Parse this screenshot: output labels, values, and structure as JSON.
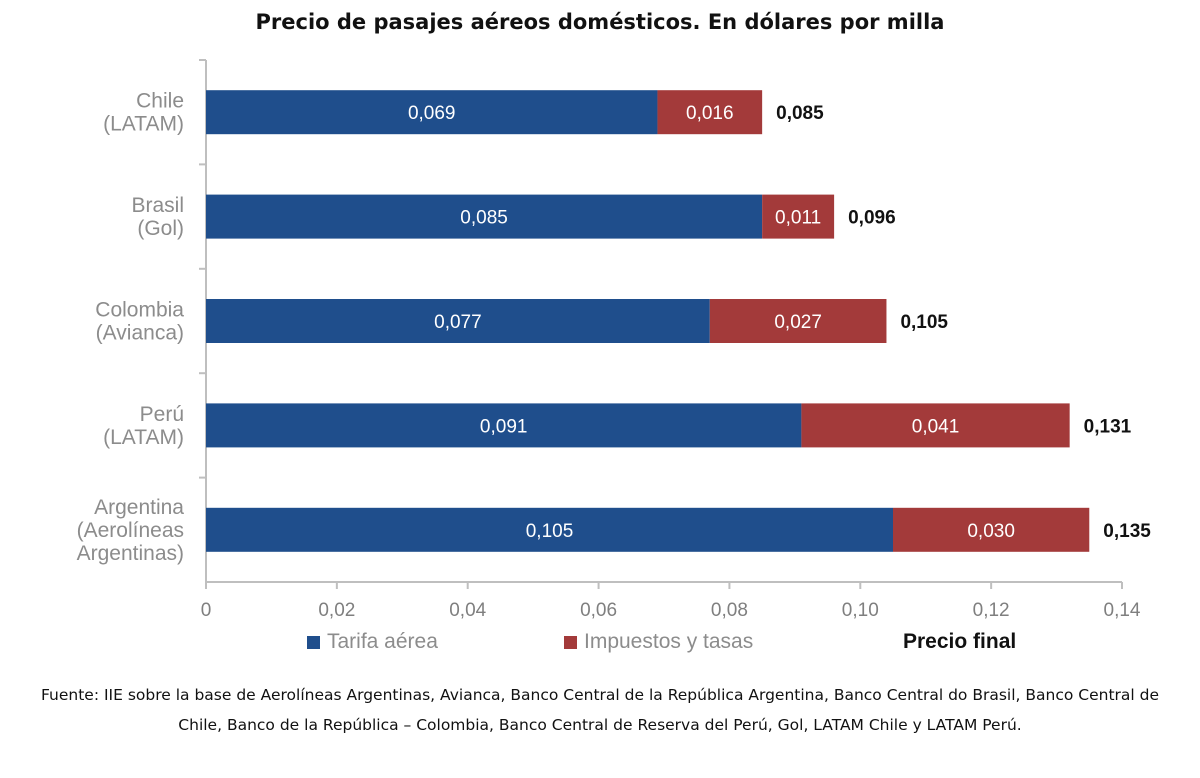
{
  "colors": {
    "tarifa": "#1f4e8c",
    "impuestos": "#a33a3a",
    "axis": "#bfbfbf",
    "category_text": "#8c8c8c",
    "legend_text": "#8c8c8c"
  },
  "chart_data": {
    "type": "bar",
    "orientation": "horizontal",
    "stacked": true,
    "title": "Precio de pasajes aéreos domésticos. En dólares por milla",
    "categories": [
      [
        "Chile",
        "(LATAM)"
      ],
      [
        "Brasil",
        "(Gol)"
      ],
      [
        "Colombia",
        "(Avianca)"
      ],
      [
        "Perú",
        "(LATAM)"
      ],
      [
        "Argentina",
        "(Aerolíneas",
        "Argentinas)"
      ]
    ],
    "series": [
      {
        "name": "Tarifa aérea",
        "values": [
          0.069,
          0.085,
          0.077,
          0.091,
          0.105
        ],
        "labels": [
          "0,069",
          "0,085",
          "0,077",
          "0,091",
          "0,105"
        ]
      },
      {
        "name": "Impuestos y tasas",
        "values": [
          0.016,
          0.011,
          0.027,
          0.041,
          0.03
        ],
        "labels": [
          "0,016",
          "0,011",
          "0,027",
          "0,041",
          "0,030"
        ]
      }
    ],
    "totals": {
      "name": "Precio final",
      "values": [
        0.085,
        0.096,
        0.105,
        0.131,
        0.135
      ],
      "labels": [
        "0,085",
        "0,096",
        "0,105",
        "0,131",
        "0,135"
      ]
    },
    "xlim": [
      0,
      0.14
    ],
    "xticks": [
      0,
      0.02,
      0.04,
      0.06,
      0.08,
      0.1,
      0.12,
      0.14
    ],
    "xtick_labels": [
      "0",
      "0,02",
      "0,04",
      "0,06",
      "0,08",
      "0,10",
      "0,12",
      "0,14"
    ],
    "grid": false,
    "legend_position": "bottom"
  },
  "source_note": "Fuente: IIE sobre la base de Aerolíneas Argentinas, Avianca, Banco Central de la República Argentina, Banco Central do Brasil, Banco Central de Chile, Banco de la República – Colombia, Banco Central de Reserva del Perú, Gol, LATAM Chile y LATAM Perú."
}
